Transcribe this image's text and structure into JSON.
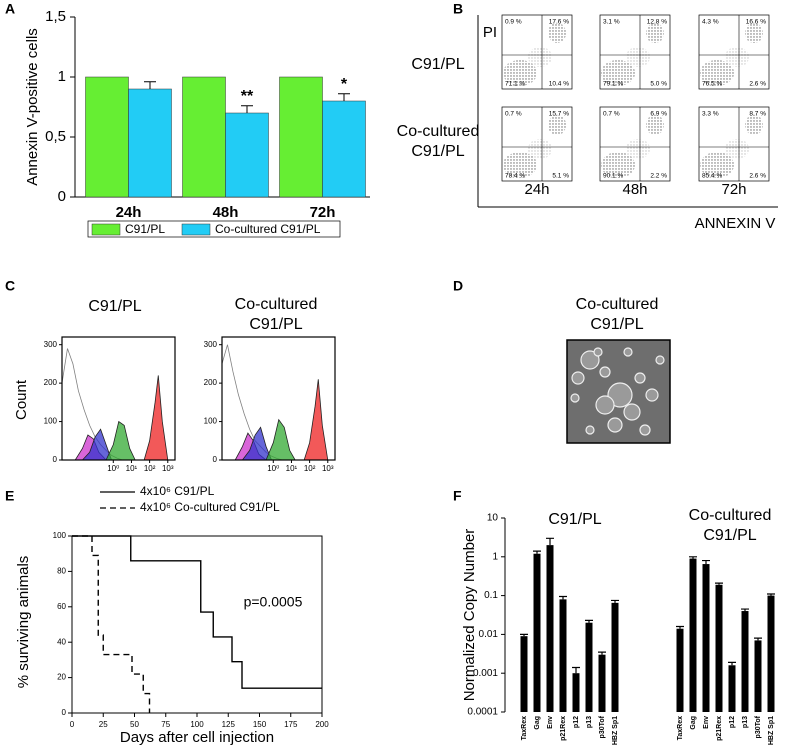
{
  "panel_labels": [
    "A",
    "B",
    "C",
    "D",
    "E",
    "F"
  ],
  "chart_data": [
    {
      "type": "bar",
      "ylabel": "Annexin V-positive cells",
      "categories": [
        "24h",
        "48h",
        "72h"
      ],
      "series": [
        {
          "name": "C91/PL",
          "color": "#66ee33",
          "values": [
            1,
            1,
            1
          ]
        },
        {
          "name": "Co-cultured C91/PL",
          "color": "#22ccf5",
          "values": [
            0.9,
            0.7,
            0.8
          ],
          "errors": [
            0.06,
            0.06,
            0.06
          ],
          "significance": [
            null,
            "**",
            "*"
          ]
        }
      ],
      "ylim": [
        0,
        1.5
      ],
      "yticks": [
        0,
        {
          "value": 0.5,
          "label": "0,5"
        },
        1,
        {
          "value": 1.5,
          "label": "1,5"
        }
      ]
    },
    {
      "type": "flow-cytometry",
      "ylabel": "PI",
      "xlabel": "ANNEXIN V",
      "rows": [
        "C91/PL",
        "Co-cultured C91/PL"
      ],
      "columns": [
        "24h",
        "48h",
        "72h"
      ],
      "quadrants": [
        [
          [
            "0.9 %",
            "17.6 %",
            "71.1 %",
            "10.4 %"
          ],
          [
            "3.1 %",
            "12.8 %",
            "79.1 %",
            "5.0 %"
          ],
          [
            "4.3 %",
            "16.6 %",
            "76.5 %",
            "2.6 %"
          ]
        ],
        [
          [
            "0.7 %",
            "15.7 %",
            "78.4 %",
            "5.1 %"
          ],
          [
            "0.7 %",
            "6.9 %",
            "90.1 %",
            "2.2 %"
          ],
          [
            "3.3 %",
            "8.7 %",
            "85.4 %",
            "2.6 %"
          ]
        ]
      ]
    },
    {
      "type": "histogram-overlay",
      "ylabel": "Count",
      "log_x": true,
      "xlim": [
        0.0015,
        2500
      ],
      "xticks": [
        {
          "value": 1,
          "label": "10⁰"
        },
        {
          "value": 10,
          "label": "10¹"
        },
        {
          "value": 100,
          "label": "10²"
        },
        {
          "value": 1000,
          "label": "10³"
        }
      ],
      "ylim": [
        0,
        320
      ],
      "yticks": [
        0,
        100,
        200,
        300
      ],
      "panels": [
        {
          "title": "C91/PL",
          "series": [
            {
              "color": "#808080",
              "fill": false,
              "x": [
                0.0015,
                0.003,
                0.006,
                0.012,
                0.025,
                0.05,
                0.1,
                0.2,
                0.4,
                0.8,
                1.6,
                3.2
              ],
              "values": [
                200,
                290,
                250,
                180,
                130,
                90,
                60,
                40,
                25,
                12,
                5,
                0
              ]
            },
            {
              "color": "#cc33cc",
              "fill": true,
              "x": [
                0.008,
                0.02,
                0.04,
                0.08,
                0.16,
                0.4
              ],
              "values": [
                0,
                30,
                65,
                55,
                20,
                0
              ]
            },
            {
              "color": "#3333cc",
              "fill": true,
              "x": [
                0.02,
                0.05,
                0.1,
                0.2,
                0.4,
                0.8
              ],
              "values": [
                0,
                20,
                60,
                80,
                40,
                0
              ]
            },
            {
              "color": "#33aa33",
              "fill": true,
              "x": [
                0.4,
                1,
                2,
                4,
                8,
                16
              ],
              "values": [
                0,
                40,
                100,
                90,
                30,
                0
              ]
            },
            {
              "color": "#ee2222",
              "fill": true,
              "x": [
                50,
                100,
                200,
                300,
                500,
                1000
              ],
              "values": [
                0,
                50,
                150,
                220,
                100,
                0
              ]
            }
          ]
        },
        {
          "title": "Co-cultured C91/PL",
          "series": [
            {
              "color": "#808080",
              "fill": false,
              "x": [
                0.0015,
                0.003,
                0.006,
                0.012,
                0.025,
                0.05,
                0.1,
                0.2,
                0.4,
                0.8,
                1.6,
                3.2
              ],
              "values": [
                250,
                300,
                230,
                170,
                120,
                80,
                50,
                35,
                20,
                10,
                4,
                0
              ]
            },
            {
              "color": "#cc33cc",
              "fill": true,
              "x": [
                0.008,
                0.02,
                0.04,
                0.08,
                0.16,
                0.4
              ],
              "values": [
                0,
                35,
                70,
                50,
                15,
                0
              ]
            },
            {
              "color": "#3333cc",
              "fill": true,
              "x": [
                0.02,
                0.05,
                0.1,
                0.2,
                0.4,
                0.8
              ],
              "values": [
                0,
                25,
                65,
                85,
                35,
                0
              ]
            },
            {
              "color": "#33aa33",
              "fill": true,
              "x": [
                0.4,
                1,
                2,
                4,
                8,
                16
              ],
              "values": [
                0,
                45,
                105,
                85,
                25,
                0
              ]
            },
            {
              "color": "#ee2222",
              "fill": true,
              "x": [
                50,
                100,
                200,
                300,
                500,
                1000
              ],
              "values": [
                0,
                45,
                140,
                210,
                90,
                0
              ]
            }
          ]
        }
      ]
    },
    {
      "type": "image",
      "title": "Co-cultured C91/PL"
    },
    {
      "type": "line",
      "xlabel": "Days after cell injection",
      "ylabel": "% surviving animals",
      "annotation": "p=0.0005",
      "xlim": [
        0,
        200
      ],
      "xticks": [
        0,
        25,
        50,
        75,
        100,
        125,
        150,
        175,
        200
      ],
      "ylim": [
        0,
        100
      ],
      "yticks": [
        0,
        20,
        40,
        60,
        80,
        100
      ],
      "series": [
        {
          "name": "4x10⁶ C91/PL",
          "color": "#000000",
          "dash": false,
          "x": [
            0,
            47,
            47,
            103,
            103,
            113,
            113,
            128,
            128,
            136,
            136,
            200
          ],
          "values": [
            100,
            100,
            86,
            86,
            57,
            57,
            43,
            43,
            29,
            29,
            14,
            14
          ]
        },
        {
          "name": "4x10⁶ Co-cultured C91/PL",
          "color": "#000000",
          "dash": true,
          "x": [
            0,
            16,
            16,
            21,
            21,
            25,
            25,
            48,
            48,
            57,
            57,
            62,
            62
          ],
          "values": [
            100,
            100,
            89,
            89,
            44,
            44,
            33,
            33,
            22,
            22,
            11,
            11,
            0
          ]
        }
      ]
    },
    {
      "type": "bar",
      "log_y": true,
      "ylabel": "Normalized Copy Number",
      "categories": [
        "TaxRex",
        "Gag",
        "Env",
        "p21Rex",
        "p12",
        "p13",
        "p30Tof",
        "HBZ Sp1"
      ],
      "series": [
        {
          "name": "C91/PL",
          "color": "#000000",
          "values": [
            0.009,
            1.2,
            2,
            0.08,
            0.001,
            0.02,
            0.003,
            0.065
          ],
          "errors": [
            0.001,
            0.2,
            1,
            0.015,
            0.0004,
            0.003,
            0.0005,
            0.01
          ]
        },
        {
          "name": "Co-cultured C91/PL",
          "color": "#000000",
          "values": [
            0.014,
            0.9,
            0.65,
            0.19,
            0.0016,
            0.04,
            0.007,
            0.1
          ],
          "errors": [
            0.002,
            0.1,
            0.15,
            0.02,
            0.0003,
            0.005,
            0.001,
            0.01
          ]
        }
      ],
      "ylim": [
        0.0001,
        10
      ],
      "yticks": [
        0.0001,
        0.001,
        0.01,
        0.1,
        1,
        10
      ]
    }
  ]
}
